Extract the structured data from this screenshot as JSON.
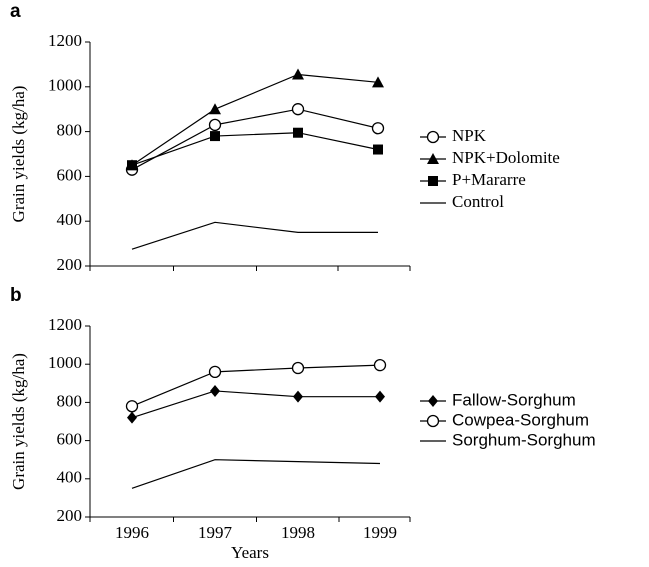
{
  "chart_data": [
    {
      "type": "line",
      "label": "a",
      "ylabel": "Grain yields (kg/ha)",
      "categories": [
        null,
        null,
        null,
        null
      ],
      "ylim": [
        200,
        1200
      ],
      "yticks": [
        200,
        400,
        600,
        800,
        1000,
        1200
      ],
      "legend_font": "serif",
      "series": [
        {
          "name": "NPK",
          "color": "#000",
          "marker": "circle-open",
          "values": [
            630,
            830,
            900,
            815
          ]
        },
        {
          "name": "NPK+Dolomite",
          "color": "#000",
          "marker": "triangle",
          "values": [
            650,
            900,
            1055,
            1020
          ]
        },
        {
          "name": "P+Mararre",
          "color": "#000",
          "marker": "square",
          "values": [
            650,
            780,
            795,
            720
          ]
        },
        {
          "name": "Control",
          "color": "#000",
          "marker": "none",
          "values": [
            275,
            395,
            350,
            350
          ]
        }
      ]
    },
    {
      "type": "line",
      "label": "b",
      "ylabel": "Grain yields (kg/ha)",
      "xlabel": "Years",
      "categories": [
        "1996",
        "1997",
        "1998",
        "1999"
      ],
      "ylim": [
        200,
        1200
      ],
      "yticks": [
        200,
        400,
        600,
        800,
        1000,
        1200
      ],
      "legend_font": "sans",
      "series": [
        {
          "name": "Fallow-Sorghum",
          "color": "#000",
          "marker": "diamond",
          "values": [
            720,
            860,
            830,
            830
          ]
        },
        {
          "name": "Cowpea-Sorghum",
          "color": "#000",
          "marker": "circle-open",
          "values": [
            780,
            960,
            980,
            995
          ]
        },
        {
          "name": "Sorghum-Sorghum",
          "color": "#000",
          "marker": "none",
          "values": [
            350,
            500,
            490,
            480
          ]
        }
      ]
    }
  ]
}
